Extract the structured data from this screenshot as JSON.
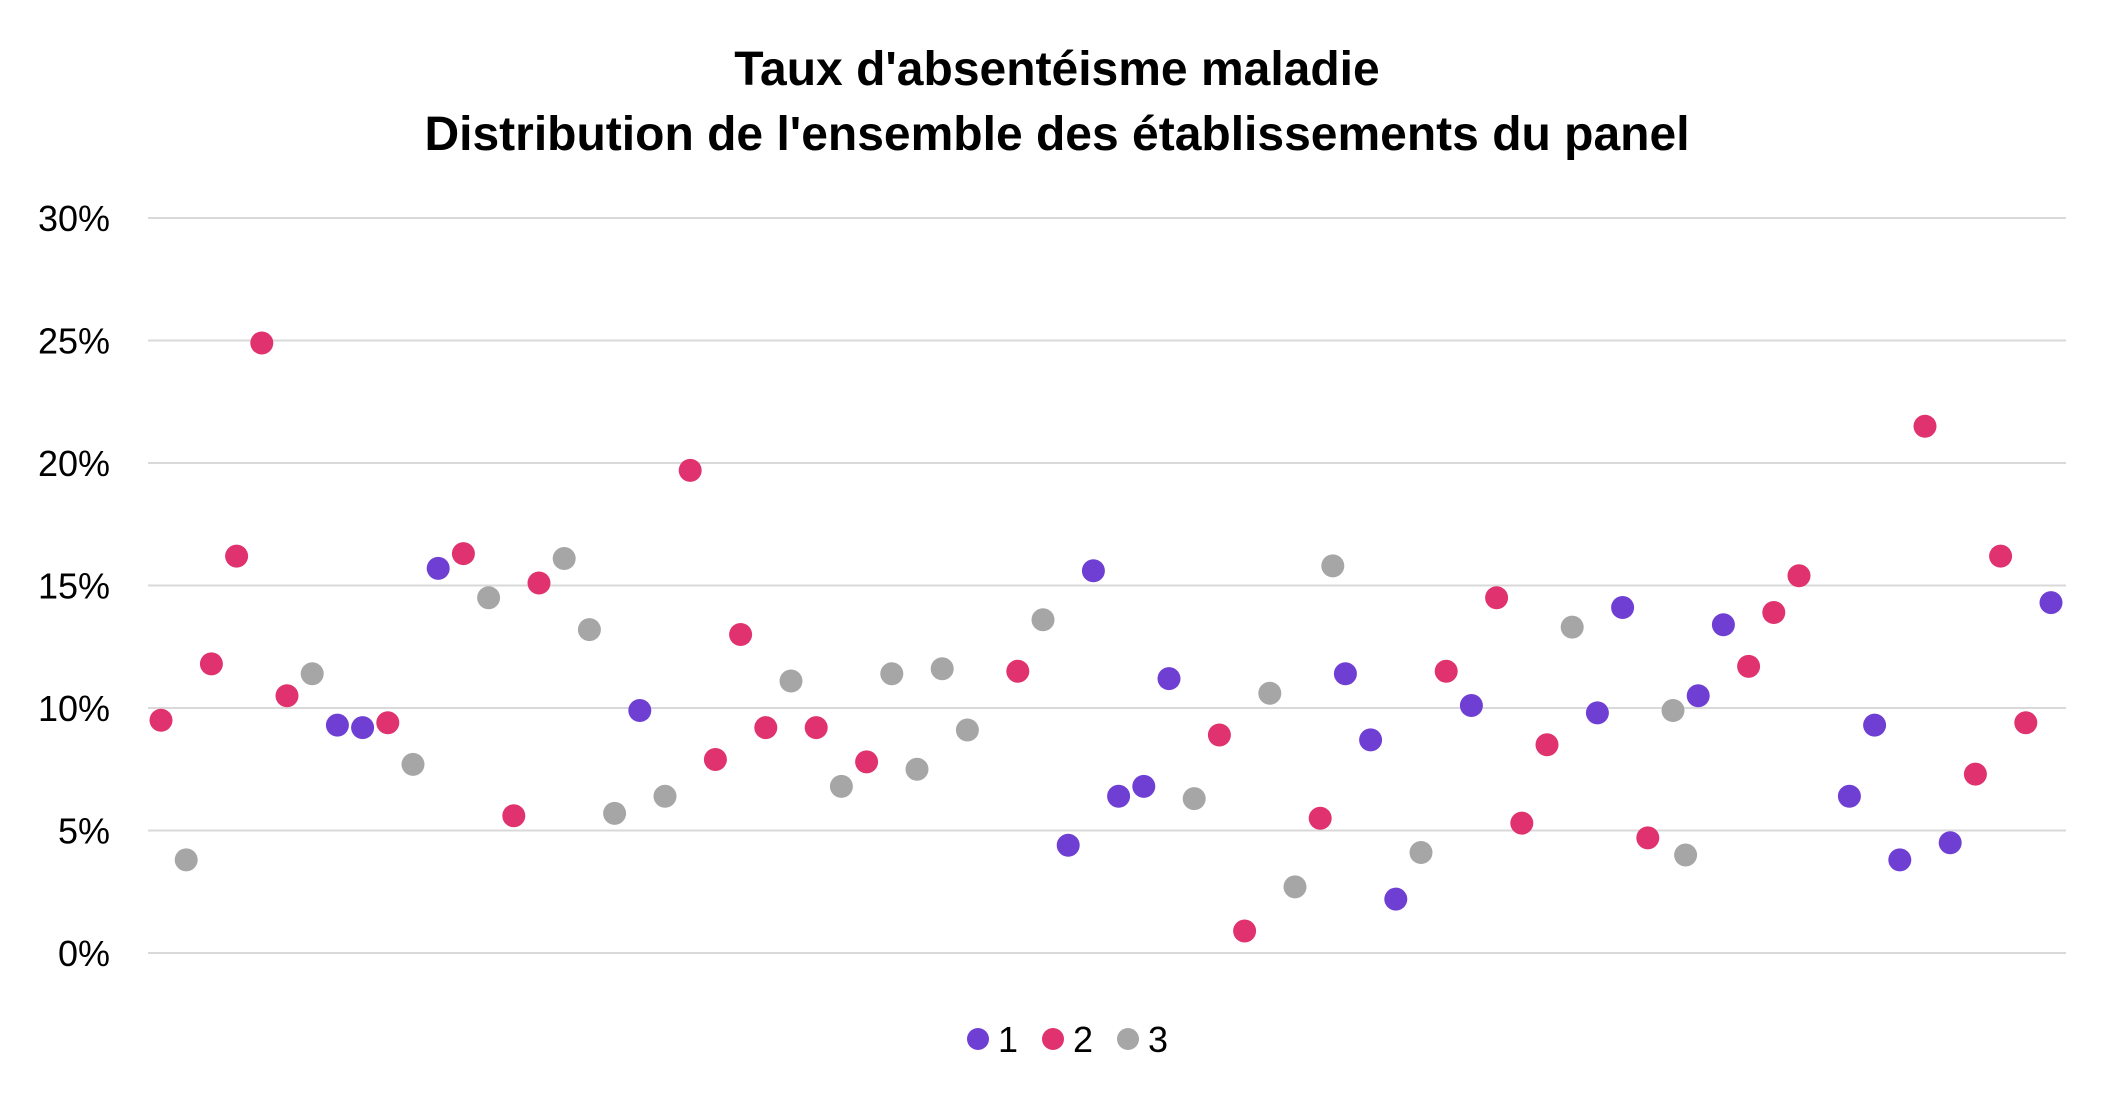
{
  "chart_data": {
    "type": "scatter",
    "title": [
      "Taux d'absentéisme maladie",
      "Distribution de l'ensemble des établissements du panel"
    ],
    "xlabel": "",
    "ylabel": "",
    "ylim": [
      0,
      0.3
    ],
    "yticks": [
      {
        "value": 0,
        "label": "0%"
      },
      {
        "value": 0.05,
        "label": "5%"
      },
      {
        "value": 0.1,
        "label": "10%"
      },
      {
        "value": 0.15,
        "label": "15%"
      },
      {
        "value": 0.2,
        "label": "20%"
      },
      {
        "value": 0.25,
        "label": "25%"
      },
      {
        "value": 0.3,
        "label": "30%"
      }
    ],
    "grid": true,
    "legend_position": "bottom",
    "x_count": 76,
    "series": [
      {
        "name": "1",
        "color": "#6f3fd4",
        "points": [
          {
            "x": 8,
            "y": 0.093
          },
          {
            "x": 9,
            "y": 0.092
          },
          {
            "x": 12,
            "y": 0.157
          },
          {
            "x": 20,
            "y": 0.099
          },
          {
            "x": 37,
            "y": 0.044
          },
          {
            "x": 38,
            "y": 0.156
          },
          {
            "x": 39,
            "y": 0.064
          },
          {
            "x": 40,
            "y": 0.068
          },
          {
            "x": 41,
            "y": 0.112
          },
          {
            "x": 48,
            "y": 0.114
          },
          {
            "x": 49,
            "y": 0.087
          },
          {
            "x": 50,
            "y": 0.022
          },
          {
            "x": 53,
            "y": 0.101
          },
          {
            "x": 58,
            "y": 0.098
          },
          {
            "x": 59,
            "y": 0.141
          },
          {
            "x": 62,
            "y": 0.105
          },
          {
            "x": 63,
            "y": 0.134
          },
          {
            "x": 68,
            "y": 0.064
          },
          {
            "x": 69,
            "y": 0.093
          },
          {
            "x": 70,
            "y": 0.038
          },
          {
            "x": 72,
            "y": 0.045
          },
          {
            "x": 76,
            "y": 0.143
          }
        ]
      },
      {
        "name": "2",
        "color": "#e0326e",
        "points": [
          {
            "x": 1,
            "y": 0.095
          },
          {
            "x": 3,
            "y": 0.118
          },
          {
            "x": 4,
            "y": 0.162
          },
          {
            "x": 5,
            "y": 0.249
          },
          {
            "x": 6,
            "y": 0.105
          },
          {
            "x": 10,
            "y": 0.094
          },
          {
            "x": 13,
            "y": 0.163
          },
          {
            "x": 15,
            "y": 0.056
          },
          {
            "x": 16,
            "y": 0.151
          },
          {
            "x": 22,
            "y": 0.197
          },
          {
            "x": 23,
            "y": 0.079
          },
          {
            "x": 24,
            "y": 0.13
          },
          {
            "x": 25,
            "y": 0.092
          },
          {
            "x": 27,
            "y": 0.092
          },
          {
            "x": 29,
            "y": 0.078
          },
          {
            "x": 35,
            "y": 0.115
          },
          {
            "x": 43,
            "y": 0.089
          },
          {
            "x": 44,
            "y": 0.009
          },
          {
            "x": 47,
            "y": 0.055
          },
          {
            "x": 52,
            "y": 0.115
          },
          {
            "x": 54,
            "y": 0.145
          },
          {
            "x": 55,
            "y": 0.053
          },
          {
            "x": 56,
            "y": 0.085
          },
          {
            "x": 60,
            "y": 0.047
          },
          {
            "x": 64,
            "y": 0.117
          },
          {
            "x": 65,
            "y": 0.139
          },
          {
            "x": 66,
            "y": 0.154
          },
          {
            "x": 71,
            "y": 0.215
          },
          {
            "x": 73,
            "y": 0.073
          },
          {
            "x": 74,
            "y": 0.162
          },
          {
            "x": 75,
            "y": 0.094
          }
        ]
      },
      {
        "name": "3",
        "color": "#a6a6a6",
        "points": [
          {
            "x": 2,
            "y": 0.038
          },
          {
            "x": 7,
            "y": 0.114
          },
          {
            "x": 11,
            "y": 0.077
          },
          {
            "x": 14,
            "y": 0.145
          },
          {
            "x": 17,
            "y": 0.161
          },
          {
            "x": 18,
            "y": 0.132
          },
          {
            "x": 19,
            "y": 0.057
          },
          {
            "x": 21,
            "y": 0.064
          },
          {
            "x": 26,
            "y": 0.111
          },
          {
            "x": 28,
            "y": 0.068
          },
          {
            "x": 30,
            "y": 0.114
          },
          {
            "x": 31,
            "y": 0.075
          },
          {
            "x": 32,
            "y": 0.116
          },
          {
            "x": 33,
            "y": 0.091
          },
          {
            "x": 36,
            "y": 0.136
          },
          {
            "x": 42,
            "y": 0.063
          },
          {
            "x": 45,
            "y": 0.106
          },
          {
            "x": 46,
            "y": 0.027
          },
          {
            "x": 47.5,
            "y": 0.158
          },
          {
            "x": 51,
            "y": 0.041
          },
          {
            "x": 57,
            "y": 0.133
          },
          {
            "x": 61,
            "y": 0.099
          },
          {
            "x": 61.5,
            "y": 0.04
          }
        ]
      }
    ]
  }
}
